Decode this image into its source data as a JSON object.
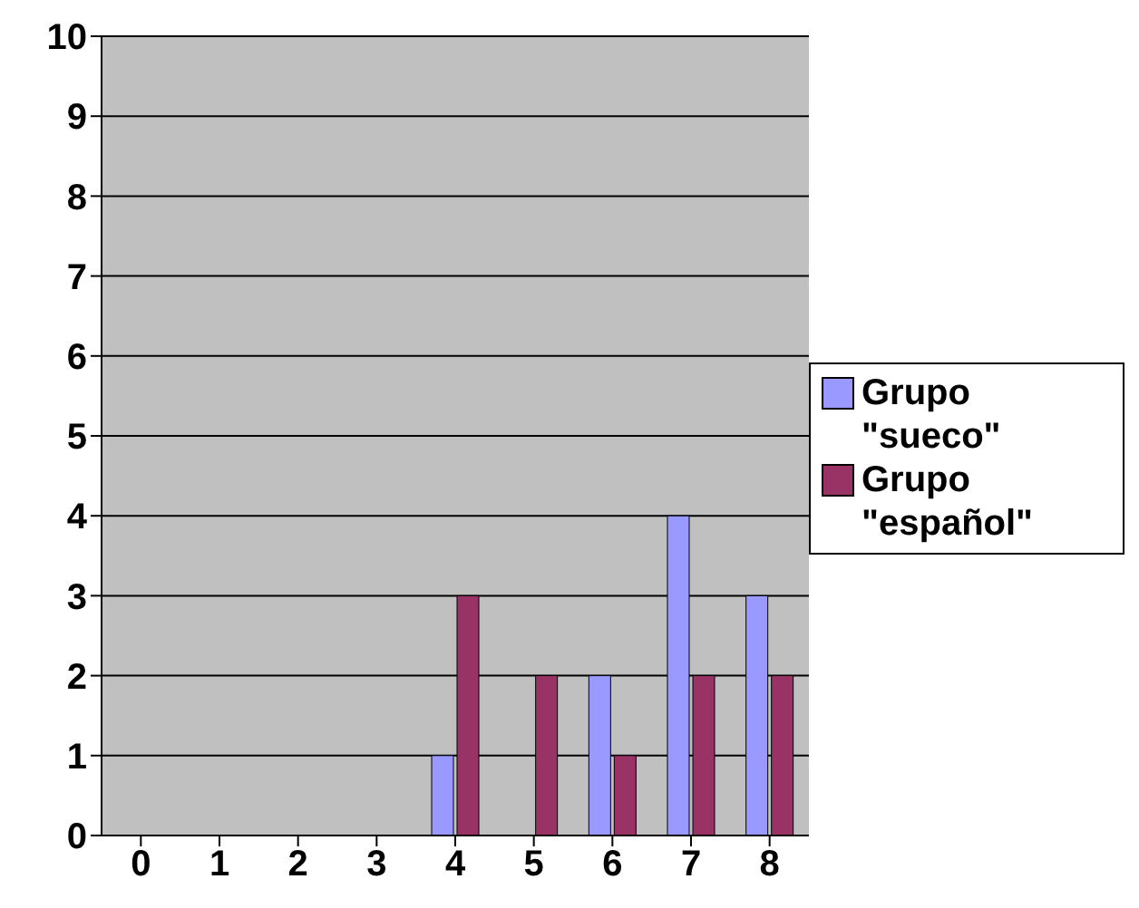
{
  "chart_data": {
    "type": "bar",
    "categories": [
      "0",
      "1",
      "2",
      "3",
      "4",
      "5",
      "6",
      "7",
      "8"
    ],
    "series": [
      {
        "name": "Grupo \"sueco\"",
        "color": "#9999ff",
        "values": [
          0,
          0,
          0,
          0,
          1,
          0,
          2,
          4,
          3
        ]
      },
      {
        "name": "Grupo \"español\"",
        "color": "#993366",
        "values": [
          0,
          0,
          0,
          0,
          3,
          2,
          1,
          2,
          2
        ]
      }
    ],
    "ylim": [
      0,
      10
    ],
    "yticks": [
      0,
      1,
      2,
      3,
      4,
      5,
      6,
      7,
      8,
      9,
      10
    ],
    "grid": "y",
    "legend": "right"
  }
}
